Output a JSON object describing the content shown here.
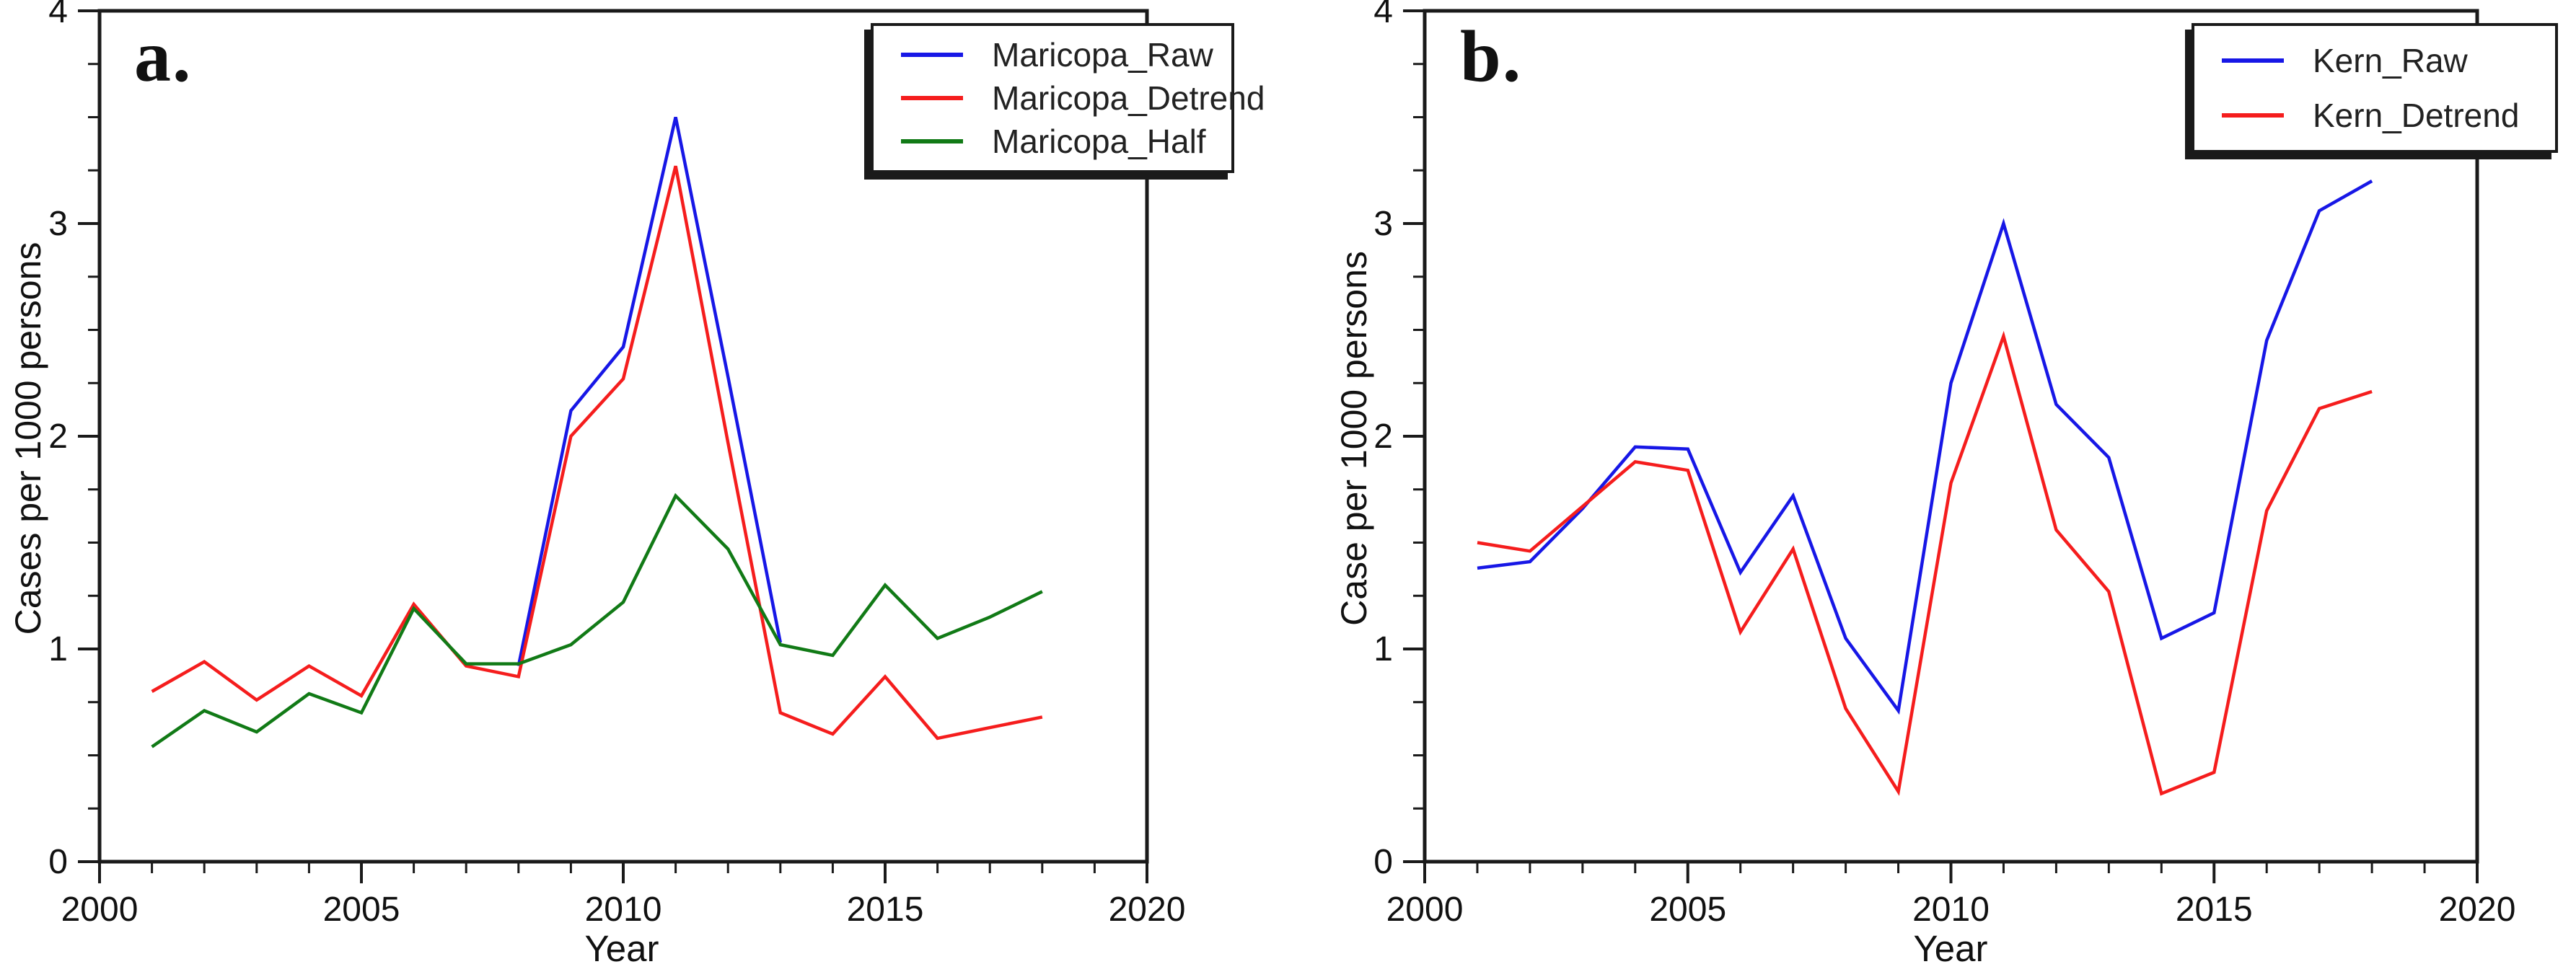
{
  "figure": {
    "background": "#ffffff",
    "axis_color": "#1a1a1a",
    "text_color": "#111111"
  },
  "chart_data": [
    {
      "type": "line",
      "panel_letter": "a.",
      "xlabel": "Year",
      "ylabel": "Cases per 1000 persons",
      "xlim": [
        2000,
        2020
      ],
      "ylim": [
        0,
        4
      ],
      "xticks": [
        2000,
        2005,
        2010,
        2015,
        2020
      ],
      "yticks": [
        0,
        1,
        2,
        3,
        4
      ],
      "minor_x_step": 1,
      "minor_y_step": 0.25,
      "grid": false,
      "legend_position": "top-right",
      "x": [
        2001,
        2002,
        2003,
        2004,
        2005,
        2006,
        2007,
        2008,
        2009,
        2010,
        2011,
        2012,
        2013,
        2014,
        2015,
        2016,
        2017,
        2018
      ],
      "series": [
        {
          "name": "Maricopa_Raw",
          "color": "#1717e6",
          "values": [
            null,
            null,
            null,
            null,
            null,
            null,
            null,
            0.92,
            2.12,
            2.42,
            3.5,
            2.28,
            1.03,
            null,
            null,
            null,
            null,
            null
          ]
        },
        {
          "name": "Maricopa_Detrend",
          "color": "#f51d1d",
          "values": [
            0.8,
            0.94,
            0.76,
            0.92,
            0.78,
            1.21,
            0.92,
            0.87,
            2.0,
            2.27,
            3.27,
            1.97,
            0.7,
            0.6,
            0.87,
            0.58,
            0.63,
            0.68
          ]
        },
        {
          "name": "Maricopa_Half",
          "color": "#117a16",
          "values": [
            0.54,
            0.71,
            0.61,
            0.79,
            0.7,
            1.19,
            0.93,
            0.93,
            1.02,
            1.22,
            1.72,
            1.47,
            1.02,
            0.97,
            1.3,
            1.05,
            1.15,
            1.27
          ]
        }
      ]
    },
    {
      "type": "line",
      "panel_letter": "b.",
      "xlabel": "Year",
      "ylabel": "Case per 1000 persons",
      "xlim": [
        2000,
        2020
      ],
      "ylim": [
        0,
        4
      ],
      "xticks": [
        2000,
        2005,
        2010,
        2015,
        2020
      ],
      "yticks": [
        0,
        1,
        2,
        3,
        4
      ],
      "minor_x_step": 1,
      "minor_y_step": 0.25,
      "grid": false,
      "legend_position": "top-right",
      "x": [
        2001,
        2002,
        2003,
        2004,
        2005,
        2006,
        2007,
        2008,
        2009,
        2010,
        2011,
        2012,
        2013,
        2014,
        2015,
        2016,
        2017,
        2018
      ],
      "series": [
        {
          "name": "Kern_Raw",
          "color": "#1717e6",
          "values": [
            1.38,
            1.41,
            1.66,
            1.95,
            1.94,
            1.36,
            1.72,
            1.05,
            0.71,
            2.25,
            3.0,
            2.15,
            1.9,
            1.05,
            1.17,
            2.45,
            3.06,
            3.2
          ]
        },
        {
          "name": "Kern_Detrend",
          "color": "#f51d1d",
          "values": [
            1.5,
            1.46,
            1.67,
            1.88,
            1.84,
            1.08,
            1.47,
            0.72,
            0.33,
            1.78,
            2.47,
            1.56,
            1.27,
            0.32,
            0.42,
            1.65,
            2.13,
            2.21
          ]
        }
      ]
    }
  ]
}
